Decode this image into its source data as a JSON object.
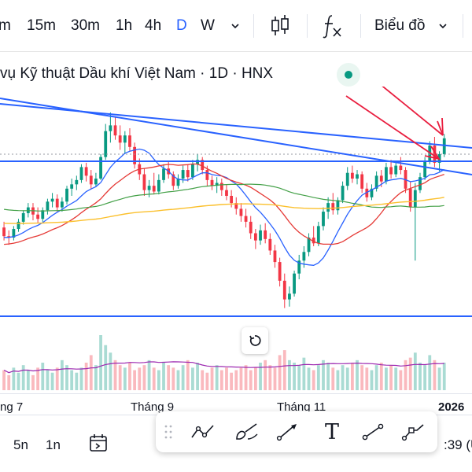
{
  "toolbar": {
    "timeframes": [
      "m",
      "15m",
      "30m",
      "1h",
      "4h",
      "D",
      "W"
    ],
    "active_timeframe": "D",
    "candle_icon": "candlestick-icon",
    "indicator_icon": "fx-indicators-icon",
    "chart_type_label": "Biểu đồ"
  },
  "legend": {
    "title": "vụ Kỹ thuật Dầu khí Việt Nam · 1D · HNX",
    "status_color": "#089981"
  },
  "chart_data": {
    "type": "candlestick",
    "x_tick_labels": [
      "ng 7",
      "Tháng 9",
      "Tháng 11",
      "2026"
    ],
    "candles": [
      [
        34.2,
        34.6,
        33.3,
        33.6
      ],
      [
        33.6,
        34.0,
        33.0,
        33.5
      ],
      [
        33.5,
        34.3,
        33.3,
        34.1
      ],
      [
        34.1,
        34.8,
        33.9,
        34.6
      ],
      [
        34.6,
        35.4,
        34.4,
        35.2
      ],
      [
        35.2,
        35.9,
        34.9,
        35.6
      ],
      [
        35.6,
        35.9,
        34.7,
        35.1
      ],
      [
        35.1,
        35.6,
        34.5,
        34.8
      ],
      [
        34.8,
        35.6,
        34.6,
        35.4
      ],
      [
        35.4,
        36.2,
        35.1,
        36.0
      ],
      [
        36.0,
        36.6,
        35.6,
        36.2
      ],
      [
        36.2,
        36.5,
        35.3,
        35.6
      ],
      [
        35.6,
        36.3,
        35.3,
        36.0
      ],
      [
        36.0,
        37.1,
        35.8,
        36.9
      ],
      [
        36.9,
        37.6,
        36.4,
        37.2
      ],
      [
        37.2,
        37.8,
        36.8,
        37.5
      ],
      [
        37.5,
        38.6,
        37.3,
        38.4
      ],
      [
        38.4,
        38.7,
        37.4,
        37.8
      ],
      [
        37.8,
        38.2,
        36.9,
        37.2
      ],
      [
        37.2,
        38.0,
        37.0,
        37.6
      ],
      [
        37.6,
        39.3,
        37.5,
        39.1
      ],
      [
        39.1,
        41.4,
        38.9,
        40.9
      ],
      [
        40.9,
        42.2,
        40.1,
        41.3
      ],
      [
        41.3,
        41.9,
        40.3,
        40.6
      ],
      [
        40.6,
        41.3,
        39.6,
        40.1
      ],
      [
        40.1,
        40.9,
        39.3,
        40.6
      ],
      [
        40.6,
        41.1,
        39.5,
        39.8
      ],
      [
        39.8,
        40.1,
        38.3,
        38.6
      ],
      [
        38.6,
        39.0,
        37.5,
        37.9
      ],
      [
        37.9,
        38.3,
        36.4,
        36.8
      ],
      [
        36.8,
        37.5,
        36.3,
        37.1
      ],
      [
        37.1,
        38.0,
        36.5,
        36.7
      ],
      [
        36.7,
        37.9,
        36.5,
        37.5
      ],
      [
        37.5,
        38.6,
        37.3,
        38.3
      ],
      [
        38.3,
        38.8,
        37.6,
        37.9
      ],
      [
        37.9,
        38.1,
        36.8,
        37.1
      ],
      [
        37.1,
        37.9,
        36.9,
        37.6
      ],
      [
        37.6,
        38.5,
        37.3,
        38.2
      ],
      [
        38.2,
        38.6,
        37.4,
        37.7
      ],
      [
        37.7,
        38.9,
        37.5,
        38.6
      ],
      [
        38.6,
        39.3,
        38.1,
        38.9
      ],
      [
        38.9,
        39.1,
        37.9,
        38.2
      ],
      [
        38.2,
        38.5,
        37.1,
        37.5
      ],
      [
        37.5,
        37.8,
        36.8,
        37.1
      ],
      [
        37.1,
        37.7,
        36.6,
        37.3
      ],
      [
        37.3,
        37.6,
        36.4,
        36.8
      ],
      [
        36.8,
        37.2,
        36.1,
        36.4
      ],
      [
        36.4,
        36.8,
        35.6,
        35.9
      ],
      [
        35.9,
        36.3,
        35.1,
        35.5
      ],
      [
        35.5,
        35.9,
        34.6,
        35.0
      ],
      [
        35.0,
        35.5,
        34.2,
        34.6
      ],
      [
        34.6,
        35.0,
        33.4,
        33.8
      ],
      [
        33.8,
        34.1,
        32.7,
        33.3
      ],
      [
        33.3,
        34.4,
        33.0,
        34.0
      ],
      [
        34.0,
        34.5,
        33.1,
        33.4
      ],
      [
        33.4,
        33.8,
        32.3,
        32.6
      ],
      [
        32.6,
        33.0,
        31.4,
        31.8
      ],
      [
        31.8,
        32.1,
        30.1,
        30.5
      ],
      [
        30.5,
        31.0,
        28.6,
        29.2
      ],
      [
        29.2,
        30.1,
        28.7,
        29.6
      ],
      [
        29.6,
        31.2,
        29.4,
        31.0
      ],
      [
        31.0,
        32.3,
        30.6,
        31.9
      ],
      [
        31.9,
        32.9,
        31.4,
        32.5
      ],
      [
        32.5,
        33.8,
        32.2,
        33.5
      ],
      [
        33.5,
        34.3,
        32.9,
        33.1
      ],
      [
        33.1,
        34.6,
        32.9,
        34.3
      ],
      [
        34.3,
        35.6,
        34.0,
        35.3
      ],
      [
        35.3,
        36.3,
        34.8,
        35.9
      ],
      [
        35.9,
        36.6,
        35.1,
        35.4
      ],
      [
        35.4,
        36.3,
        35.1,
        36.1
      ],
      [
        36.1,
        37.4,
        35.9,
        37.1
      ],
      [
        37.1,
        38.4,
        36.8,
        38.0
      ],
      [
        38.0,
        38.5,
        37.3,
        37.6
      ],
      [
        37.6,
        38.2,
        37.2,
        37.9
      ],
      [
        37.9,
        38.1,
        36.6,
        36.9
      ],
      [
        36.9,
        37.3,
        36.0,
        36.3
      ],
      [
        36.3,
        37.2,
        36.1,
        36.9
      ],
      [
        36.9,
        38.1,
        36.7,
        37.8
      ],
      [
        37.8,
        38.2,
        37.0,
        37.4
      ],
      [
        37.4,
        38.7,
        37.2,
        38.4
      ],
      [
        38.4,
        38.9,
        37.6,
        37.9
      ],
      [
        37.9,
        38.8,
        37.7,
        38.5
      ],
      [
        38.5,
        39.1,
        37.9,
        38.2
      ],
      [
        38.2,
        38.4,
        36.6,
        36.9
      ],
      [
        36.9,
        37.4,
        35.3,
        35.6
      ],
      [
        35.6,
        37.3,
        31.9,
        36.8
      ],
      [
        36.8,
        38.0,
        36.6,
        37.7
      ],
      [
        37.7,
        39.1,
        37.5,
        38.8
      ],
      [
        38.8,
        40.2,
        38.6,
        39.9
      ],
      [
        39.9,
        40.5,
        38.4,
        38.7
      ],
      [
        38.7,
        39.5,
        38.1,
        39.3
      ],
      [
        39.3,
        40.7,
        39.1,
        40.4
      ]
    ],
    "volumes": [
      8,
      6,
      9,
      7,
      10,
      8,
      6,
      9,
      11,
      8,
      7,
      9,
      12,
      10,
      8,
      7,
      9,
      11,
      14,
      10,
      22,
      18,
      15,
      12,
      10,
      9,
      11,
      8,
      9,
      10,
      12,
      9,
      8,
      11,
      10,
      9,
      8,
      10,
      12,
      9,
      11,
      8,
      7,
      9,
      10,
      8,
      9,
      7,
      8,
      9,
      10,
      8,
      9,
      11,
      12,
      10,
      9,
      14,
      16,
      12,
      11,
      10,
      13,
      9,
      8,
      10,
      12,
      11,
      9,
      8,
      10,
      9,
      11,
      12,
      10,
      9,
      8,
      10,
      11,
      9,
      10,
      9,
      8,
      12,
      13,
      15,
      11,
      10,
      14,
      12,
      9,
      11
    ],
    "lines": {
      "sma_short_color": "#2962ff",
      "sma_mid_color": "#e53935",
      "sma_long_color": "#43a047",
      "sma_xlong_color": "#fbc02d",
      "volume_ma_color": "#9c27b0",
      "trendline_color": "#2962ff",
      "horizontal_color": "#2962ff",
      "arrow_color": "#e91e3f"
    },
    "up_color": "#089981",
    "down_color": "#f23645",
    "grid": false
  },
  "time_axis": {
    "labels": [
      "ng 7",
      "Tháng 9",
      "Tháng 11",
      "2026"
    ]
  },
  "bottombar": {
    "ranges": [
      "5n",
      "1n"
    ],
    "calendar_icon": "calendar-goto-icon",
    "clock_text": ":39 (U"
  },
  "drawing_toolbar": {
    "tools": [
      "trend-line-icon",
      "brush-icon",
      "arrow-icon",
      "text-icon",
      "line-icon",
      "path-icon"
    ],
    "text_tool_label": "T"
  }
}
